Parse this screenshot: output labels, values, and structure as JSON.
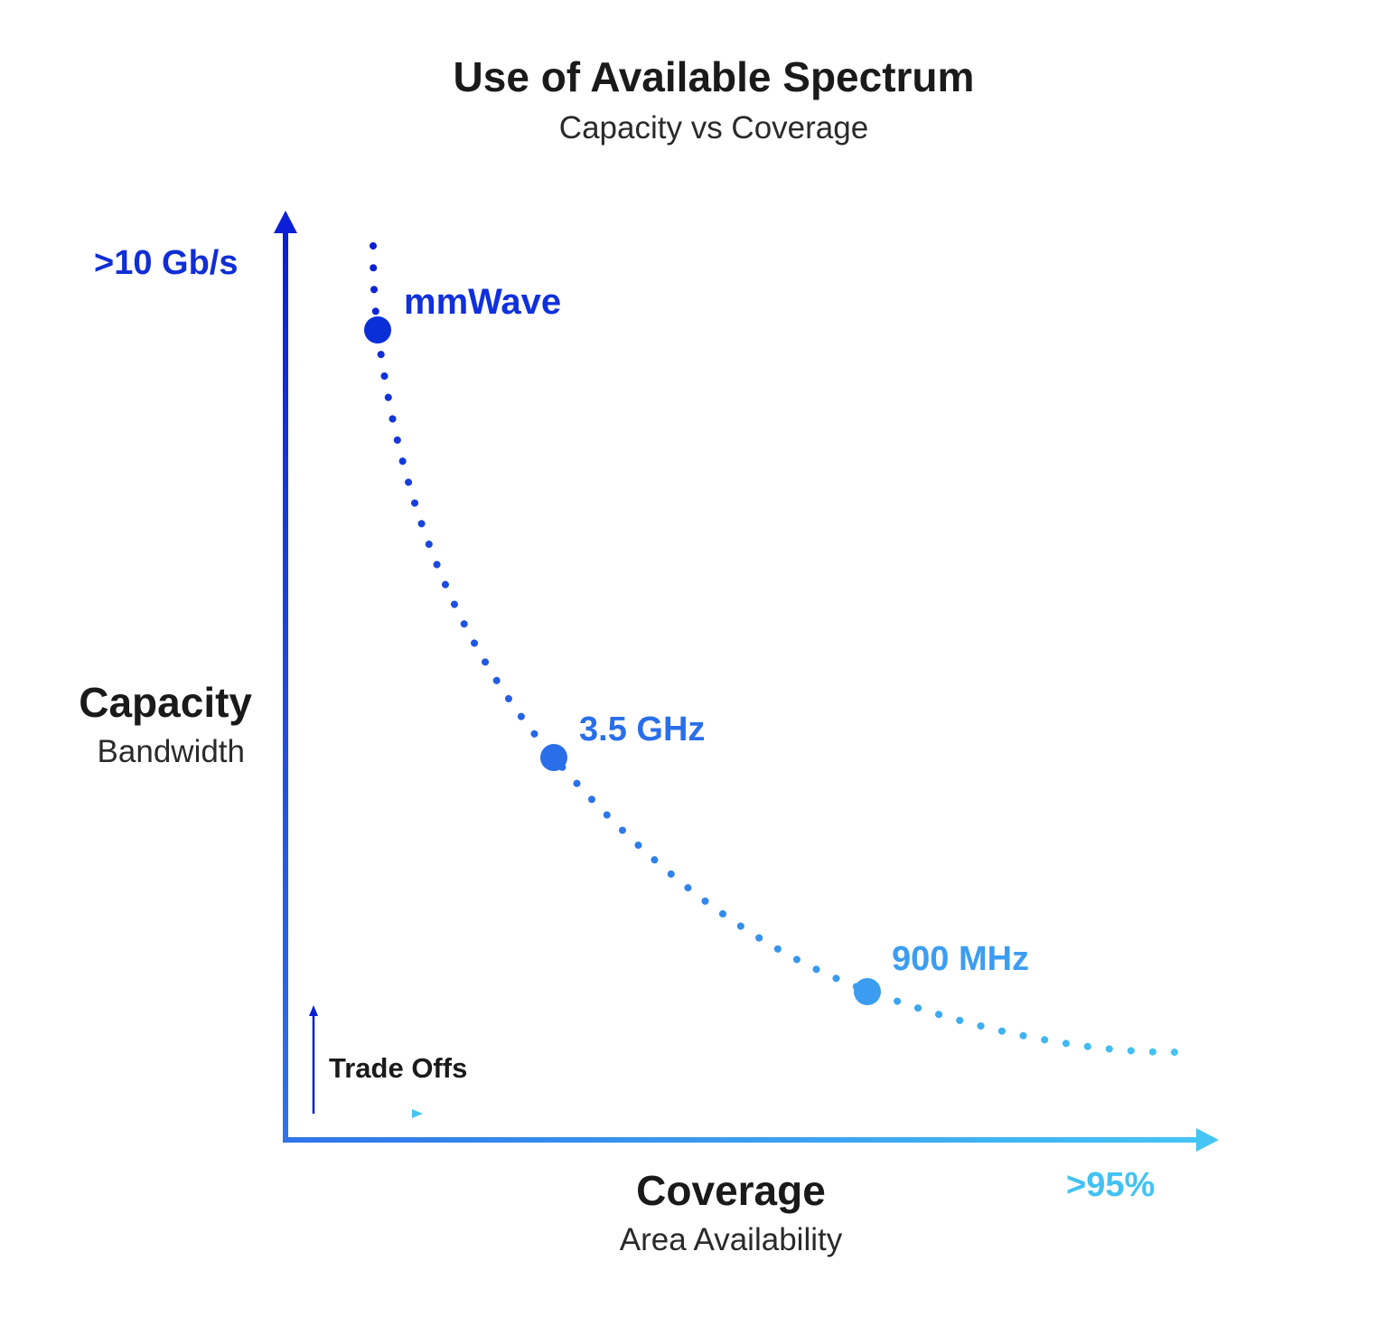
{
  "title": "Use of Available Spectrum",
  "subtitle": "Capacity vs Coverage",
  "y_axis": {
    "max_label": ">10 Gb/s",
    "title": "Capacity",
    "subtitle": "Bandwidth"
  },
  "x_axis": {
    "max_label": ">95%",
    "title": "Coverage",
    "subtitle": "Area Availability"
  },
  "points": [
    {
      "label": "mmWave",
      "color": "#0a2ed8"
    },
    {
      "label": "3.5 GHz",
      "color": "#2a6fe9"
    },
    {
      "label": "900 MHz",
      "color": "#3c9df0"
    }
  ],
  "legend": {
    "label": "Trade Offs"
  },
  "colors": {
    "axis_start": "#0a1fd6",
    "axis_end": "#45c5f4",
    "text_dark": "#1a1a1a"
  }
}
